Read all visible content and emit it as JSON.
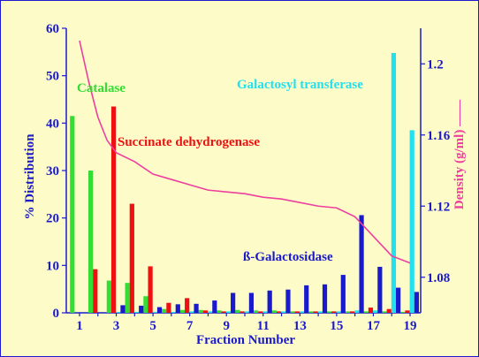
{
  "chart_data": {
    "type": "bar",
    "xlabel": "Fraction Number",
    "ylabel_left": "% Distribution",
    "ylabel_right": "Density (g/ml) ——",
    "x_ticks": [
      "1",
      "3",
      "5",
      "7",
      "9",
      "11",
      "13",
      "15",
      "17",
      "19"
    ],
    "y_left_ticks": [
      "0",
      "10",
      "20",
      "30",
      "40",
      "50",
      "60"
    ],
    "y_right_ticks": [
      "1.08",
      "1.12",
      "1.16",
      "1.2"
    ],
    "ylim_left": [
      0,
      60
    ],
    "ylim_right": [
      1.06,
      1.22
    ],
    "fractions": [
      1,
      2,
      3,
      4,
      5,
      6,
      7,
      8,
      9,
      10,
      11,
      12,
      13,
      14,
      15,
      16,
      17,
      18,
      19
    ],
    "series": [
      {
        "name": "Catalase",
        "color": "#33dd33",
        "values": [
          41.5,
          30,
          6.8,
          6.3,
          3.5,
          0.8,
          0.6,
          0.6,
          0.5,
          0.6,
          0.5,
          0.5,
          0.3,
          0.3,
          0.3,
          0.3,
          0.3,
          0.3,
          0.2
        ]
      },
      {
        "name": "Succinate dehydrogenase",
        "color": "#ee1111",
        "values": [
          0,
          9.2,
          43.5,
          23,
          9.8,
          2.1,
          3.1,
          0.5,
          0.3,
          0.3,
          0.3,
          0.3,
          0.3,
          0.3,
          0.3,
          0.3,
          1.1,
          0.8,
          0.5
        ]
      },
      {
        "name": "Galactosyl transferase",
        "color": "#22e0ee",
        "values": [
          0,
          0,
          0.2,
          0.2,
          0.2,
          0.2,
          0.3,
          0.3,
          0.3,
          0.3,
          0.3,
          0.3,
          0.3,
          0.3,
          0.3,
          0.5,
          0.5,
          54.8,
          38.5
        ]
      },
      {
        "name": "ß-Galactosidase",
        "color": "#1a1acc",
        "values": [
          0,
          0,
          1.6,
          1.5,
          1.2,
          1.8,
          1.9,
          2.6,
          4.2,
          4.2,
          4.7,
          4.9,
          5.8,
          6,
          8,
          20.6,
          9.7,
          5.3,
          4.4
        ]
      }
    ],
    "density_line": {
      "name": "Density (g/ml)",
      "color": "#ee3f9f",
      "x": [
        1,
        1.5,
        2,
        2.5,
        3,
        4,
        5,
        6,
        7,
        8,
        9,
        10,
        11,
        12,
        13,
        14,
        15,
        16,
        17,
        18,
        19
      ],
      "y": [
        1.213,
        1.19,
        1.17,
        1.157,
        1.15,
        1.145,
        1.138,
        1.135,
        1.132,
        1.129,
        1.128,
        1.127,
        1.125,
        1.124,
        1.122,
        1.12,
        1.119,
        1.114,
        1.103,
        1.092,
        1.088
      ]
    },
    "annotations": {
      "catalase": "Catalase",
      "succinate": "Succinate dehydrogenase",
      "galactosyl": "Galactosyl transferase",
      "galactosidase": "ß-Galactosidase"
    },
    "colors": {
      "axis": "#1a1acc",
      "background": "#fdfcc8",
      "frame": "#1a1acc"
    }
  }
}
